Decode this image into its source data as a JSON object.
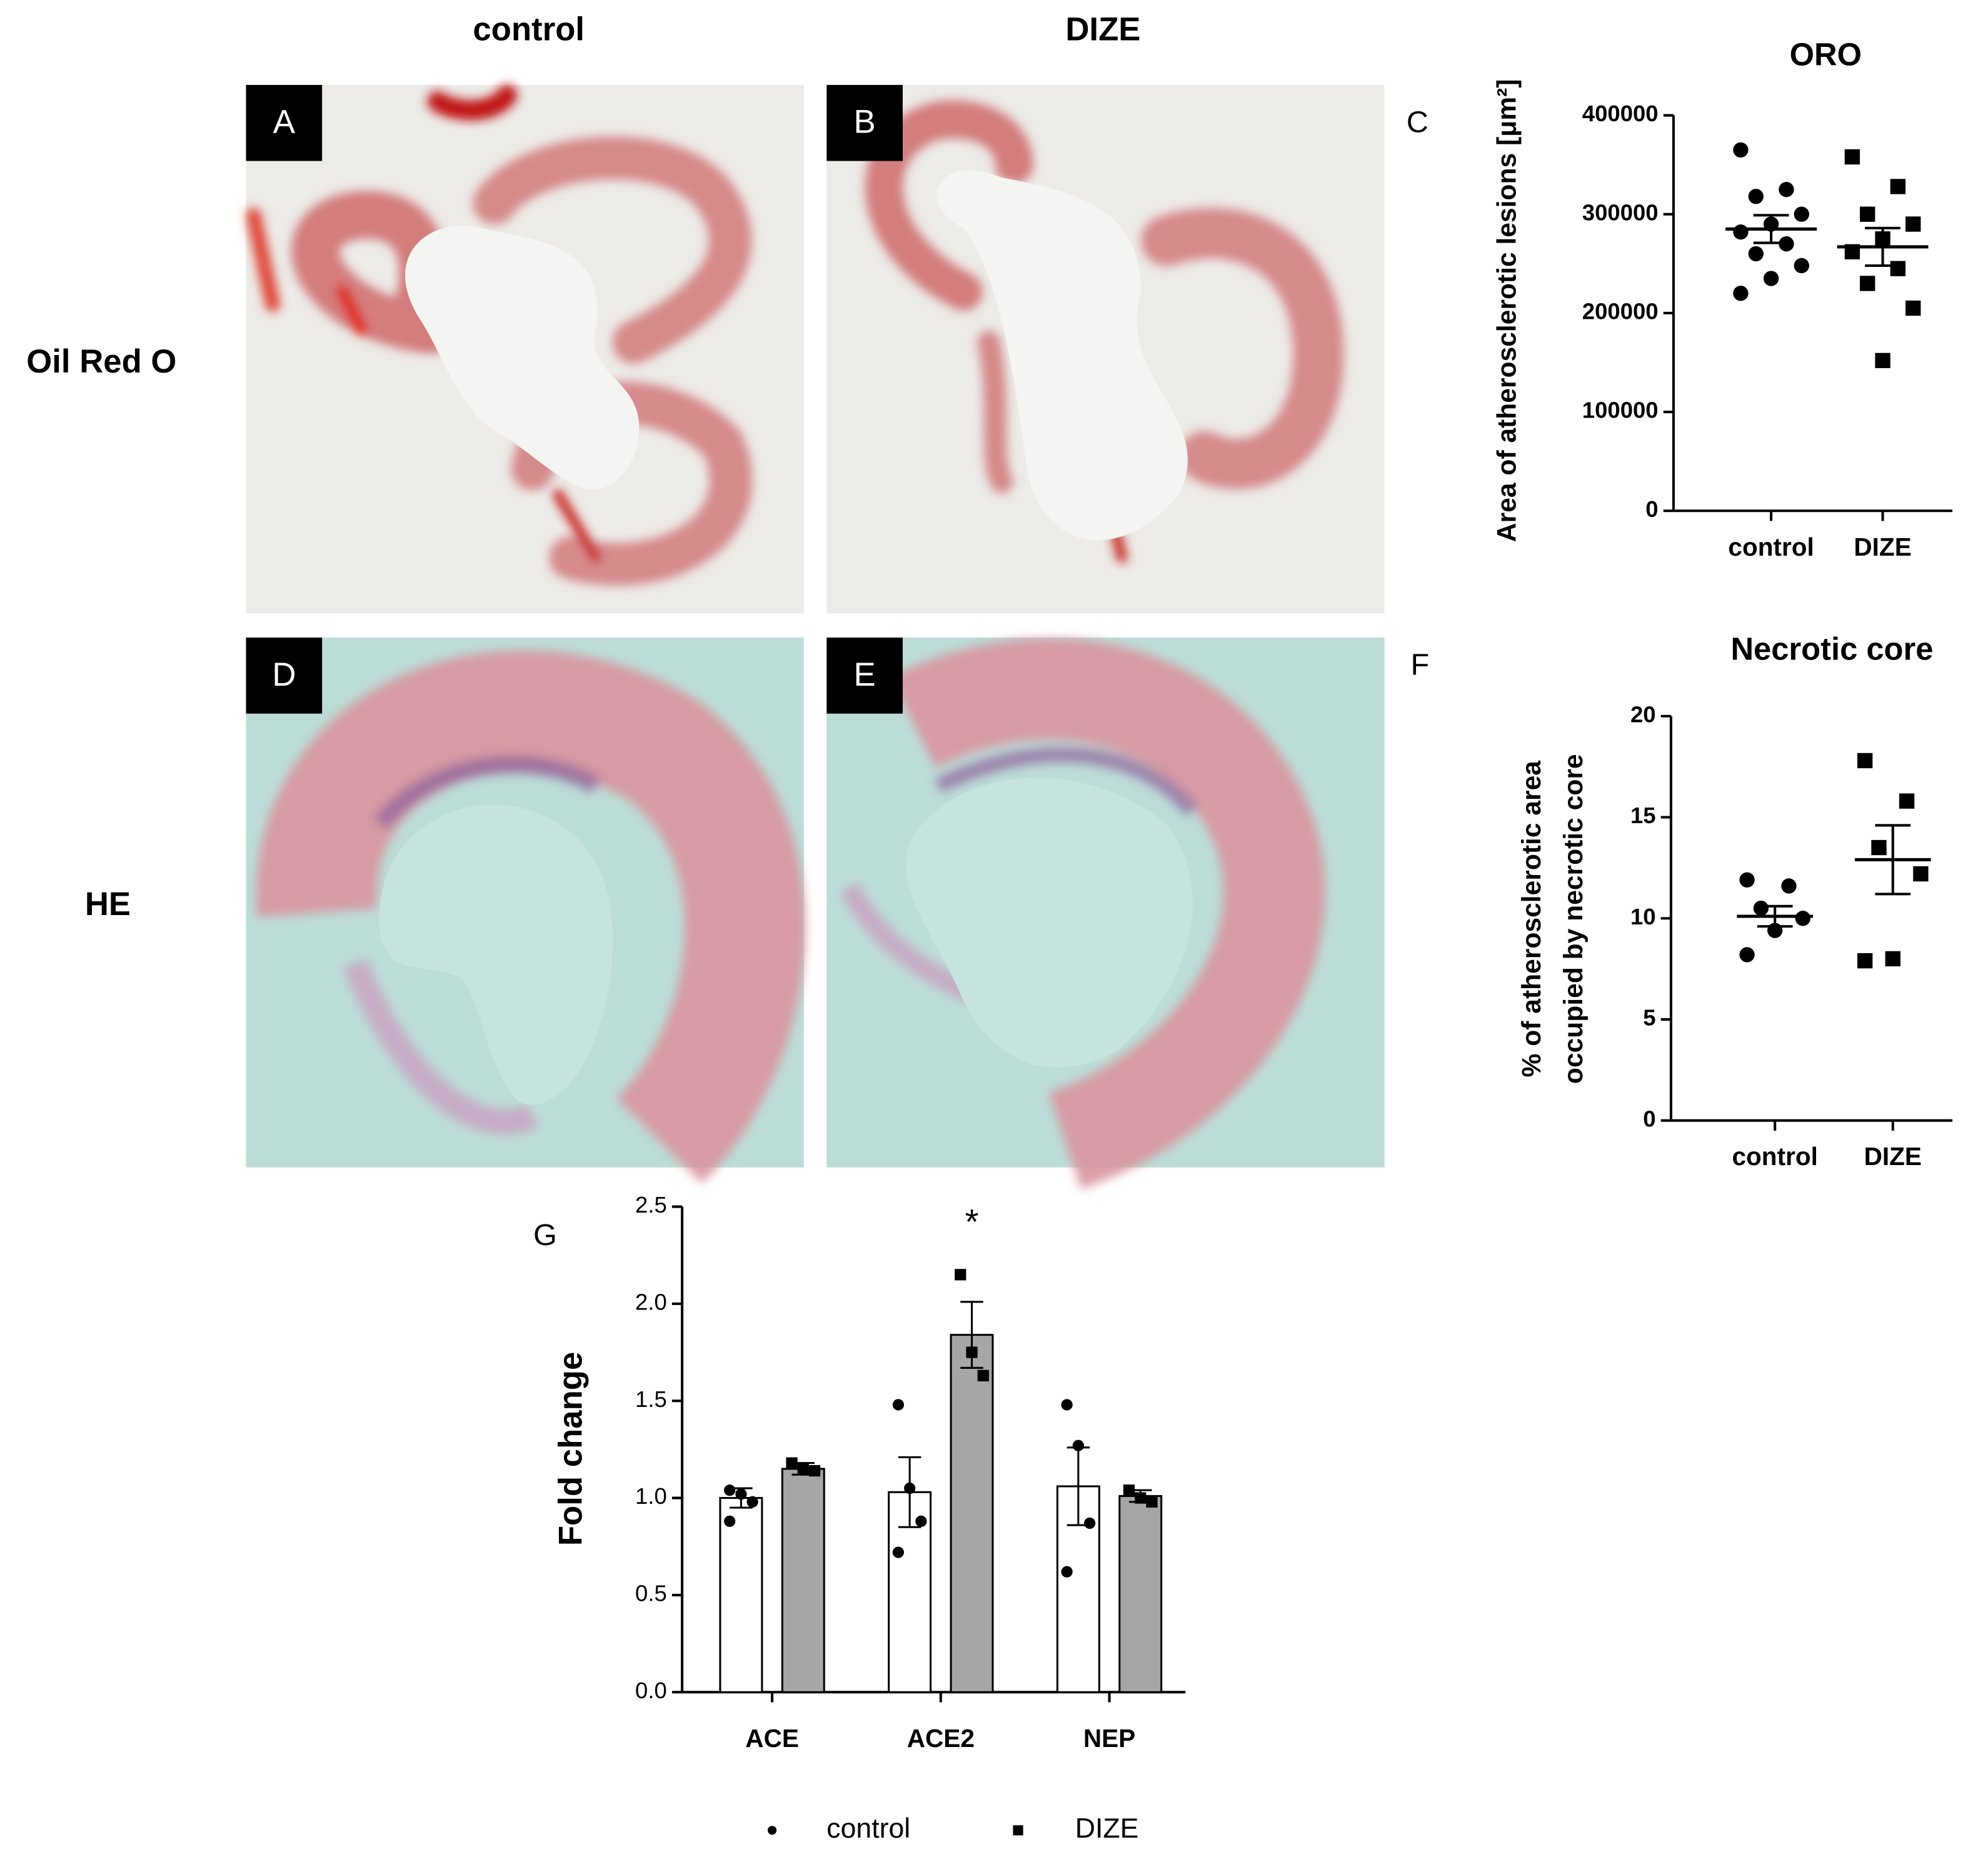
{
  "figure": {
    "columns": [
      "control",
      "DIZE"
    ],
    "rows": [
      "Oil Red O",
      "HE"
    ],
    "panels": [
      "A",
      "B",
      "C",
      "D",
      "E",
      "F",
      "G"
    ]
  },
  "chart_data": [
    {
      "type": "dotplot",
      "title": "ORO",
      "ylabel": "Area of atherosclerotic lesions [μm²]",
      "categories": [
        "control",
        "DIZE"
      ],
      "groups": [
        {
          "marker": "circle",
          "color": "#000000",
          "values": [
            365000,
            325000,
            318000,
            300000,
            290000,
            282000,
            270000,
            260000,
            248000,
            235000,
            220000
          ],
          "mean": 285000,
          "sem": 14000
        },
        {
          "marker": "square",
          "color": "#000000",
          "values": [
            358000,
            328000,
            300000,
            290000,
            275000,
            262000,
            245000,
            230000,
            205000,
            152000
          ],
          "mean": 267000,
          "sem": 19000
        }
      ],
      "ylim": [
        0,
        400000
      ],
      "yticks": [
        0,
        100000,
        200000,
        300000,
        400000
      ]
    },
    {
      "type": "dotplot",
      "title": "Necrotic core",
      "ylabel": [
        "% of atherosclerotic area",
        "occupied by necrotic core"
      ],
      "categories": [
        "control",
        "DIZE"
      ],
      "groups": [
        {
          "marker": "circle",
          "color": "#000000",
          "values": [
            11.9,
            11.6,
            10.5,
            10.0,
            9.4,
            8.2
          ],
          "mean": 10.1,
          "sem": 0.5
        },
        {
          "marker": "square",
          "color": "#000000",
          "values": [
            17.8,
            15.8,
            13.5,
            12.2,
            8.0,
            7.9
          ],
          "mean": 12.9,
          "sem": 1.7
        }
      ],
      "ylim": [
        0,
        20
      ],
      "yticks": [
        0,
        5,
        10,
        15,
        20
      ]
    },
    {
      "type": "bar",
      "ylabel": "Fold change",
      "annotation": "*",
      "categories": [
        "ACE",
        "ACE2",
        "NEP"
      ],
      "series": [
        {
          "name": "control",
          "color": "#ffffff",
          "marker": "circle",
          "values": [
            1.0,
            1.03,
            1.06
          ],
          "errors": [
            0.05,
            0.18,
            0.2
          ],
          "points": [
            [
              1.04,
              1.02,
              0.98,
              0.88
            ],
            [
              1.48,
              1.05,
              0.88,
              0.72
            ],
            [
              1.48,
              1.27,
              0.87,
              0.62
            ]
          ]
        },
        {
          "name": "DIZE",
          "color": "#a6a6a6",
          "marker": "square",
          "values": [
            1.15,
            1.84,
            1.01
          ],
          "errors": [
            0.03,
            0.17,
            0.03
          ],
          "points": [
            [
              1.18,
              1.15,
              1.14
            ],
            [
              2.15,
              1.75,
              1.63
            ],
            [
              1.04,
              1.0,
              0.98
            ]
          ]
        }
      ],
      "ylim": [
        0,
        2.5
      ],
      "yticks": [
        {
          "value": 0,
          "label": "0.0"
        },
        0.5,
        {
          "value": 1,
          "label": "1.0"
        },
        1.5,
        {
          "value": 2,
          "label": "2.0"
        },
        2.5
      ]
    }
  ]
}
